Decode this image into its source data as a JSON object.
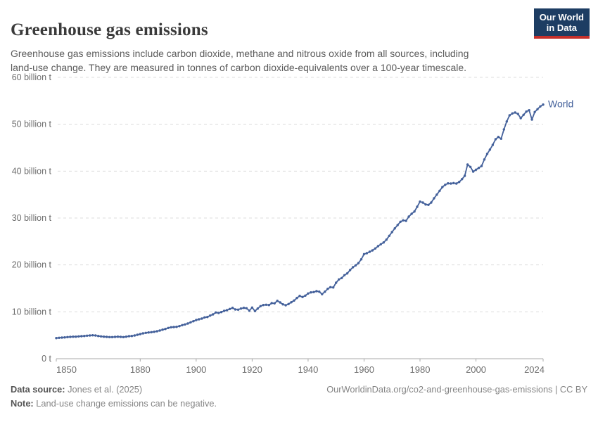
{
  "header": {
    "title": "Greenhouse gas emissions",
    "subtitle": "Greenhouse gas emissions include carbon dioxide, methane and nitrous oxide from all sources, including\nland-use change. They are measured in tonnes of carbon dioxide-equivalents over a 100-year timescale.",
    "logo": {
      "line1": "Our World",
      "line2": "in Data",
      "bg_color": "#1d3d63",
      "bar_color": "#c5302b",
      "text_color": "#ffffff"
    }
  },
  "chart_data": {
    "type": "line",
    "title": "Greenhouse gas emissions",
    "xlabel": "",
    "ylabel": "",
    "xlim": [
      1850,
      2024
    ],
    "ylim": [
      0,
      60
    ],
    "grid": "horizontal-dashed",
    "grid_color": "#dcdcdc",
    "axis_color": "#a8a8a8",
    "tick_text_color": "#6e6e6e",
    "xticks": [
      1850,
      1880,
      1900,
      1920,
      1940,
      1960,
      1980,
      2000,
      2024
    ],
    "yticks": [
      {
        "value": 0,
        "label": "0 t"
      },
      {
        "value": 10,
        "label": "10 billion t"
      },
      {
        "value": 20,
        "label": "20 billion t"
      },
      {
        "value": 30,
        "label": "30 billion t"
      },
      {
        "value": 40,
        "label": "40 billion t"
      },
      {
        "value": 50,
        "label": "50 billion t"
      },
      {
        "value": 60,
        "label": "60 billion t"
      }
    ],
    "x_start": 1850,
    "x_step": 1,
    "unit": "tonnes of CO2-equivalents",
    "series": [
      {
        "name": "World",
        "color": "#44619b",
        "values": [
          4.4,
          4.45,
          4.5,
          4.55,
          4.6,
          4.65,
          4.7,
          4.7,
          4.75,
          4.8,
          4.85,
          4.9,
          4.95,
          5.0,
          4.95,
          4.85,
          4.75,
          4.7,
          4.65,
          4.6,
          4.6,
          4.65,
          4.7,
          4.65,
          4.6,
          4.7,
          4.8,
          4.85,
          4.95,
          5.1,
          5.25,
          5.4,
          5.5,
          5.6,
          5.65,
          5.75,
          5.85,
          6.0,
          6.2,
          6.35,
          6.55,
          6.7,
          6.75,
          6.8,
          6.95,
          7.15,
          7.3,
          7.5,
          7.75,
          8.0,
          8.25,
          8.4,
          8.55,
          8.8,
          8.9,
          9.2,
          9.45,
          9.85,
          9.75,
          9.95,
          10.2,
          10.35,
          10.6,
          10.85,
          10.5,
          10.45,
          10.7,
          10.85,
          10.75,
          10.25,
          10.9,
          10.15,
          10.7,
          11.2,
          11.45,
          11.5,
          11.45,
          11.85,
          11.8,
          12.35,
          12.0,
          11.6,
          11.4,
          11.65,
          12.05,
          12.4,
          12.95,
          13.4,
          13.15,
          13.45,
          13.9,
          14.15,
          14.2,
          14.4,
          14.3,
          13.75,
          14.3,
          14.9,
          15.25,
          15.2,
          16.2,
          16.9,
          17.2,
          17.8,
          18.2,
          18.9,
          19.5,
          19.9,
          20.4,
          21.2,
          22.3,
          22.5,
          22.8,
          23.1,
          23.5,
          24.0,
          24.4,
          24.8,
          25.4,
          26.2,
          27.0,
          27.8,
          28.5,
          29.2,
          29.5,
          29.4,
          30.3,
          30.9,
          31.4,
          32.4,
          33.5,
          33.3,
          32.9,
          32.8,
          33.3,
          34.2,
          35.0,
          35.8,
          36.6,
          37.1,
          37.4,
          37.35,
          37.45,
          37.35,
          37.7,
          38.3,
          39.0,
          41.4,
          40.9,
          39.9,
          40.3,
          40.7,
          41.1,
          42.5,
          43.7,
          44.6,
          45.6,
          46.8,
          47.3,
          46.9,
          48.9,
          50.6,
          51.9,
          52.3,
          52.5,
          52.2,
          51.3,
          52.0,
          52.7,
          53.0,
          51.0,
          52.6,
          53.2,
          53.8,
          54.2
        ]
      }
    ]
  },
  "footer": {
    "source_label": "Data source:",
    "source_value": " Jones et al. (2025)",
    "note_label": "Note:",
    "note_value": " Land-use change emissions can be negative.",
    "link": "OurWorldinData.org/co2-and-greenhouse-gas-emissions | CC BY"
  }
}
